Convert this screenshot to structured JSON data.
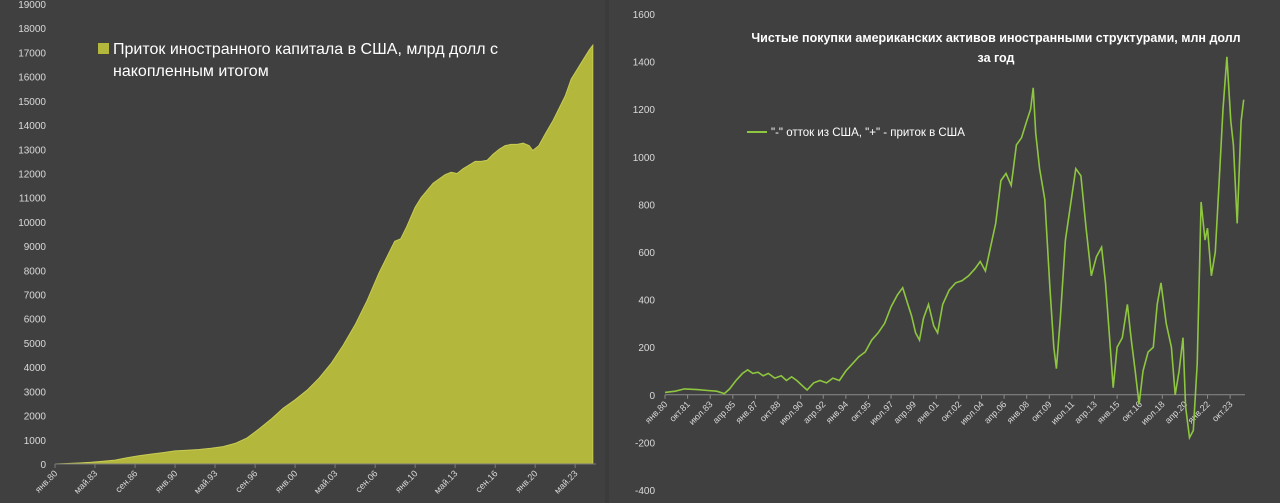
{
  "chart_data": [
    {
      "type": "area",
      "legend": [
        "Приток иностранного капитала в США, млрд долл с",
        "накопленным итогом"
      ],
      "series_name": "Приток иностранного капитала в США, млрд долл с накопленным итогом",
      "color": "#b3b83c",
      "ylim": [
        0,
        19000
      ],
      "yticks": [
        0,
        1000,
        2000,
        3000,
        4000,
        5000,
        6000,
        7000,
        8000,
        9000,
        10000,
        11000,
        12000,
        13000,
        14000,
        15000,
        16000,
        17000,
        18000,
        19000
      ],
      "xlim": [
        1980.0,
        2024.9
      ],
      "xticks": [
        {
          "label": "янв.80",
          "t": 1980.0
        },
        {
          "label": "май.83",
          "t": 1983.33
        },
        {
          "label": "сен.86",
          "t": 1986.67
        },
        {
          "label": "янв.90",
          "t": 1990.0
        },
        {
          "label": "май.93",
          "t": 1993.33
        },
        {
          "label": "сен.96",
          "t": 1996.67
        },
        {
          "label": "янв.00",
          "t": 2000.0
        },
        {
          "label": "май.03",
          "t": 2003.33
        },
        {
          "label": "сен.06",
          "t": 2006.67
        },
        {
          "label": "янв.10",
          "t": 2010.0
        },
        {
          "label": "май.13",
          "t": 2013.33
        },
        {
          "label": "сен.16",
          "t": 2016.67
        },
        {
          "label": "янв.20",
          "t": 2020.0
        },
        {
          "label": "май.23",
          "t": 2023.33
        }
      ],
      "points": [
        [
          1980.0,
          0
        ],
        [
          1981.0,
          20
        ],
        [
          1982.0,
          40
        ],
        [
          1983.0,
          70
        ],
        [
          1984.0,
          110
        ],
        [
          1985.0,
          160
        ],
        [
          1986.0,
          260
        ],
        [
          1987.0,
          340
        ],
        [
          1988.0,
          410
        ],
        [
          1989.0,
          470
        ],
        [
          1990.0,
          540
        ],
        [
          1991.0,
          570
        ],
        [
          1992.0,
          600
        ],
        [
          1993.0,
          650
        ],
        [
          1994.0,
          720
        ],
        [
          1995.0,
          850
        ],
        [
          1996.0,
          1080
        ],
        [
          1997.0,
          1450
        ],
        [
          1998.0,
          1850
        ],
        [
          1999.0,
          2300
        ],
        [
          2000.0,
          2650
        ],
        [
          2001.0,
          3050
        ],
        [
          2002.0,
          3550
        ],
        [
          2003.0,
          4150
        ],
        [
          2004.0,
          4900
        ],
        [
          2005.0,
          5750
        ],
        [
          2006.0,
          6750
        ],
        [
          2007.0,
          7900
        ],
        [
          2007.8,
          8700
        ],
        [
          2008.3,
          9200
        ],
        [
          2008.8,
          9300
        ],
        [
          2009.3,
          9800
        ],
        [
          2010.0,
          10600
        ],
        [
          2010.5,
          11000
        ],
        [
          2011.5,
          11600
        ],
        [
          2012.5,
          11950
        ],
        [
          2013.0,
          12050
        ],
        [
          2013.5,
          12000
        ],
        [
          2014.0,
          12200
        ],
        [
          2014.5,
          12350
        ],
        [
          2015.0,
          12500
        ],
        [
          2015.5,
          12500
        ],
        [
          2016.0,
          12550
        ],
        [
          2016.5,
          12800
        ],
        [
          2017.0,
          13000
        ],
        [
          2017.5,
          13150
        ],
        [
          2018.0,
          13200
        ],
        [
          2018.5,
          13200
        ],
        [
          2019.0,
          13250
        ],
        [
          2019.5,
          13150
        ],
        [
          2019.8,
          12950
        ],
        [
          2020.3,
          13150
        ],
        [
          2020.8,
          13600
        ],
        [
          2021.5,
          14200
        ],
        [
          2022.0,
          14700
        ],
        [
          2022.5,
          15200
        ],
        [
          2023.0,
          15900
        ],
        [
          2023.5,
          16300
        ],
        [
          2024.0,
          16700
        ],
        [
          2024.5,
          17100
        ],
        [
          2024.8,
          17300
        ]
      ]
    },
    {
      "type": "line",
      "title": [
        "Чистые покупки американских активов иностранными структурами, млн долл",
        "за год"
      ],
      "legend": "\"-\" отток из США, \"+\" - приток в США",
      "color": "#8ec63f",
      "ylim": [
        -400,
        1600
      ],
      "yticks": [
        -400,
        -200,
        0,
        200,
        400,
        600,
        800,
        1000,
        1200,
        1400,
        1600
      ],
      "xlim": [
        1980.0,
        2024.9
      ],
      "xticks": [
        {
          "label": "янв.80",
          "t": 1980.0
        },
        {
          "label": "окт.81",
          "t": 1981.75
        },
        {
          "label": "июл.83",
          "t": 1983.5
        },
        {
          "label": "апр.85",
          "t": 1985.25
        },
        {
          "label": "янв.87",
          "t": 1987.0
        },
        {
          "label": "окт.88",
          "t": 1988.75
        },
        {
          "label": "июл.90",
          "t": 1990.5
        },
        {
          "label": "апр.92",
          "t": 1992.25
        },
        {
          "label": "янв.94",
          "t": 1994.0
        },
        {
          "label": "окт.95",
          "t": 1995.75
        },
        {
          "label": "июл.97",
          "t": 1997.5
        },
        {
          "label": "апр.99",
          "t": 1999.25
        },
        {
          "label": "янв.01",
          "t": 2001.0
        },
        {
          "label": "окт.02",
          "t": 2002.75
        },
        {
          "label": "июл.04",
          "t": 2004.5
        },
        {
          "label": "апр.06",
          "t": 2006.25
        },
        {
          "label": "янв.08",
          "t": 2008.0
        },
        {
          "label": "окт.09",
          "t": 2009.75
        },
        {
          "label": "июл.11",
          "t": 2011.5
        },
        {
          "label": "апр.13",
          "t": 2013.25
        },
        {
          "label": "янв.15",
          "t": 2015.0
        },
        {
          "label": "окт.16",
          "t": 2016.75
        },
        {
          "label": "июл.18",
          "t": 2018.5
        },
        {
          "label": "апр.20",
          "t": 2020.25
        },
        {
          "label": "янв.22",
          "t": 2022.0
        },
        {
          "label": "окт.23",
          "t": 2023.75
        }
      ],
      "points": [
        [
          1980.0,
          10
        ],
        [
          1980.8,
          15
        ],
        [
          1981.5,
          25
        ],
        [
          1982.5,
          22
        ],
        [
          1983.3,
          18
        ],
        [
          1984.0,
          15
        ],
        [
          1984.6,
          5
        ],
        [
          1985.0,
          25
        ],
        [
          1985.5,
          60
        ],
        [
          1986.0,
          90
        ],
        [
          1986.4,
          105
        ],
        [
          1986.8,
          90
        ],
        [
          1987.2,
          95
        ],
        [
          1987.6,
          80
        ],
        [
          1988.0,
          90
        ],
        [
          1988.5,
          70
        ],
        [
          1989.0,
          80
        ],
        [
          1989.4,
          60
        ],
        [
          1989.8,
          75
        ],
        [
          1990.2,
          60
        ],
        [
          1990.6,
          40
        ],
        [
          1991.0,
          20
        ],
        [
          1991.5,
          50
        ],
        [
          1992.0,
          60
        ],
        [
          1992.5,
          50
        ],
        [
          1993.0,
          70
        ],
        [
          1993.5,
          60
        ],
        [
          1994.0,
          100
        ],
        [
          1994.5,
          130
        ],
        [
          1995.0,
          160
        ],
        [
          1995.5,
          180
        ],
        [
          1996.0,
          230
        ],
        [
          1996.5,
          260
        ],
        [
          1997.0,
          300
        ],
        [
          1997.5,
          370
        ],
        [
          1998.0,
          420
        ],
        [
          1998.4,
          450
        ],
        [
          1998.8,
          380
        ],
        [
          1999.1,
          330
        ],
        [
          1999.4,
          260
        ],
        [
          1999.7,
          230
        ],
        [
          2000.0,
          320
        ],
        [
          2000.4,
          380
        ],
        [
          2000.8,
          290
        ],
        [
          2001.1,
          260
        ],
        [
          2001.5,
          380
        ],
        [
          2002.0,
          440
        ],
        [
          2002.5,
          470
        ],
        [
          2003.0,
          480
        ],
        [
          2003.5,
          500
        ],
        [
          2004.0,
          530
        ],
        [
          2004.4,
          560
        ],
        [
          2004.8,
          520
        ],
        [
          2005.2,
          620
        ],
        [
          2005.6,
          720
        ],
        [
          2006.0,
          900
        ],
        [
          2006.4,
          930
        ],
        [
          2006.8,
          880
        ],
        [
          2007.2,
          1050
        ],
        [
          2007.6,
          1080
        ],
        [
          2008.0,
          1150
        ],
        [
          2008.3,
          1200
        ],
        [
          2008.5,
          1290
        ],
        [
          2008.7,
          1100
        ],
        [
          2009.0,
          950
        ],
        [
          2009.4,
          820
        ],
        [
          2009.8,
          450
        ],
        [
          2010.1,
          200
        ],
        [
          2010.3,
          110
        ],
        [
          2010.6,
          320
        ],
        [
          2011.0,
          650
        ],
        [
          2011.4,
          800
        ],
        [
          2011.8,
          950
        ],
        [
          2012.2,
          920
        ],
        [
          2012.6,
          700
        ],
        [
          2013.0,
          500
        ],
        [
          2013.4,
          580
        ],
        [
          2013.8,
          620
        ],
        [
          2014.1,
          470
        ],
        [
          2014.4,
          250
        ],
        [
          2014.7,
          30
        ],
        [
          2015.0,
          200
        ],
        [
          2015.4,
          240
        ],
        [
          2015.8,
          380
        ],
        [
          2016.1,
          230
        ],
        [
          2016.4,
          100
        ],
        [
          2016.7,
          -40
        ],
        [
          2017.0,
          100
        ],
        [
          2017.4,
          180
        ],
        [
          2017.8,
          200
        ],
        [
          2018.1,
          380
        ],
        [
          2018.4,
          470
        ],
        [
          2018.8,
          300
        ],
        [
          2019.2,
          200
        ],
        [
          2019.5,
          0
        ],
        [
          2019.8,
          100
        ],
        [
          2020.1,
          240
        ],
        [
          2020.3,
          -50
        ],
        [
          2020.6,
          -180
        ],
        [
          2020.9,
          -150
        ],
        [
          2021.2,
          130
        ],
        [
          2021.5,
          810
        ],
        [
          2021.8,
          650
        ],
        [
          2022.0,
          700
        ],
        [
          2022.3,
          500
        ],
        [
          2022.6,
          600
        ],
        [
          2022.9,
          900
        ],
        [
          2023.2,
          1200
        ],
        [
          2023.5,
          1420
        ],
        [
          2023.8,
          1150
        ],
        [
          2024.0,
          1050
        ],
        [
          2024.3,
          720
        ],
        [
          2024.6,
          1150
        ],
        [
          2024.8,
          1240
        ]
      ]
    }
  ]
}
